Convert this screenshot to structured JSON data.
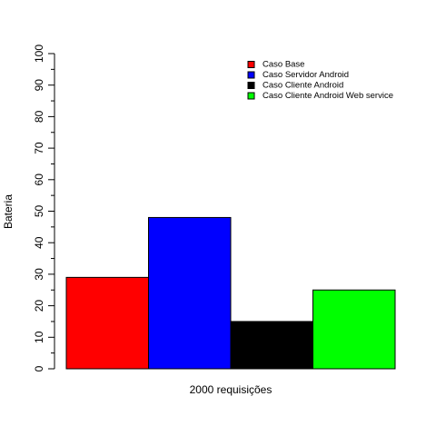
{
  "chart_data": {
    "type": "bar",
    "title": "",
    "xlabel": "2000 requisições",
    "ylabel": "Bateria",
    "ylim": [
      0,
      100
    ],
    "yticks": [
      "0",
      "10",
      "20",
      "30",
      "40",
      "50",
      "60",
      "70",
      "80",
      "90",
      "100"
    ],
    "grid": false,
    "legend_position": "top-right",
    "series": [
      {
        "name": "Caso Base",
        "value": 29,
        "color": "#ff0000"
      },
      {
        "name": "Caso Servidor Android",
        "value": 48,
        "color": "#0000ff"
      },
      {
        "name": "Caso Cliente Android",
        "value": 15,
        "color": "#000000"
      },
      {
        "name": "Caso Cliente Android Web service",
        "value": 25,
        "color": "#00ff00"
      }
    ]
  }
}
